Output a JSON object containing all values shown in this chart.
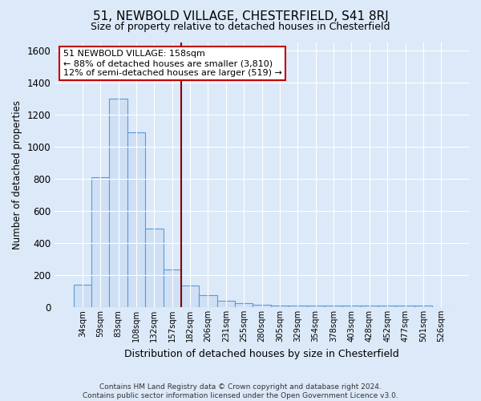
{
  "title1": "51, NEWBOLD VILLAGE, CHESTERFIELD, S41 8RJ",
  "title2": "Size of property relative to detached houses in Chesterfield",
  "xlabel": "Distribution of detached houses by size in Chesterfield",
  "ylabel": "Number of detached properties",
  "bar_labels": [
    "34sqm",
    "59sqm",
    "83sqm",
    "108sqm",
    "132sqm",
    "157sqm",
    "182sqm",
    "206sqm",
    "231sqm",
    "255sqm",
    "280sqm",
    "305sqm",
    "329sqm",
    "354sqm",
    "378sqm",
    "403sqm",
    "428sqm",
    "452sqm",
    "477sqm",
    "501sqm",
    "526sqm"
  ],
  "bar_values": [
    140,
    810,
    1300,
    1090,
    490,
    235,
    135,
    75,
    40,
    25,
    15,
    10,
    10,
    10,
    10,
    10,
    10,
    10,
    10,
    10,
    0
  ],
  "bar_color": "#cfe0f5",
  "bar_edgecolor": "#5b9bd5",
  "ylim": [
    0,
    1650
  ],
  "yticks": [
    0,
    200,
    400,
    600,
    800,
    1000,
    1200,
    1400,
    1600
  ],
  "vline_x": 6.0,
  "vline_color": "#8b0000",
  "annotation_title": "51 NEWBOLD VILLAGE: 158sqm",
  "annotation_line1": "← 88% of detached houses are smaller (3,810)",
  "annotation_line2": "12% of semi-detached houses are larger (519) →",
  "annotation_box_color": "#ffffff",
  "annotation_box_edgecolor": "#c00000",
  "footer1": "Contains HM Land Registry data © Crown copyright and database right 2024.",
  "footer2": "Contains public sector information licensed under the Open Government Licence v3.0.",
  "bg_color": "#dce9f8",
  "plot_bg_color": "#dce9f8",
  "grid_color": "#ffffff"
}
